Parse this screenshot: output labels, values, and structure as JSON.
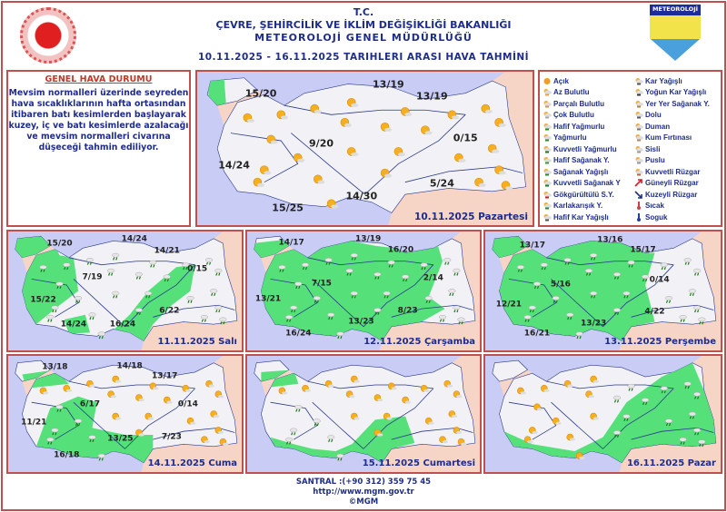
{
  "header": {
    "line1": "T.C.",
    "line2": "ÇEVRE, ŞEHİRCİLİK VE İKLİM DEĞİŞİKLİĞİ BAKANLIĞI",
    "line3": "METEOROLOJİ  GENEL  MÜDÜRLÜĞÜ",
    "line4": "10.11.2025  -  16.11.2025   TARIHLERI  ARASI  HAVA  TAHMİNİ",
    "logo_text": "METEOROLOJİ"
  },
  "summary": {
    "title": "GENEL HAVA DURUMU",
    "text": "Mevsim normalleri üzerinde seyreden hava sıcaklıklarının hafta ortasından itibaren batı kesimlerden başlayarak kuzey, iç ve batı kesimlerde azalacağı ve mevsim normalleri civarına düşeceği tahmin ediliyor."
  },
  "colors": {
    "accent": "#c0504d",
    "text": "#1f2d8a",
    "rain_area": "#55e07a",
    "sea": "#c9cdf5",
    "land": "#f2f2f6",
    "neighbor": "#f6d5c6"
  },
  "legend": [
    {
      "label": "Açık",
      "icon": "sun-icon"
    },
    {
      "label": "Az Bulutlu",
      "icon": "mostly-sunny-icon"
    },
    {
      "label": "Parçalı Bulutlu",
      "icon": "partly-cloudy-icon"
    },
    {
      "label": "Çok Bulutlu",
      "icon": "cloudy-icon"
    },
    {
      "label": "Hafif Yağmurlu",
      "icon": "light-rain-icon"
    },
    {
      "label": "Yağmurlu",
      "icon": "rain-icon"
    },
    {
      "label": "Kuvvetli Yağmurlu",
      "icon": "heavy-rain-icon"
    },
    {
      "label": "Hafif Sağanak Y.",
      "icon": "light-shower-icon"
    },
    {
      "label": "Sağanak Yağışlı",
      "icon": "shower-icon"
    },
    {
      "label": "Kuvvetli Sağanak Y",
      "icon": "heavy-shower-icon"
    },
    {
      "label": "Gökgürültülü S.Y.",
      "icon": "thunderstorm-icon"
    },
    {
      "label": "Karlakarışık Y.",
      "icon": "sleet-icon"
    },
    {
      "label": "Hafif Kar Yağışlı",
      "icon": "light-snow-icon"
    },
    {
      "label": "Kar Yağışlı",
      "icon": "snow-icon"
    },
    {
      "label": "Yoğun Kar Yağışlı",
      "icon": "heavy-snow-icon"
    },
    {
      "label": "Yer Yer Sağanak Y.",
      "icon": "scattered-shower-icon"
    },
    {
      "label": "Dolu",
      "icon": "hail-icon"
    },
    {
      "label": "Duman",
      "icon": "smoke-icon"
    },
    {
      "label": "Kum Fırtınası",
      "icon": "sandstorm-icon"
    },
    {
      "label": "Sisli",
      "icon": "fog-icon"
    },
    {
      "label": "Puslu",
      "icon": "haze-icon"
    },
    {
      "label": "Kuvvetli Rüzgar",
      "icon": "strong-wind-icon"
    },
    {
      "label": "Güneyli Rüzgar",
      "icon": "south-wind-arrow-icon"
    },
    {
      "label": "Kuzeyli Rüzgar",
      "icon": "north-wind-arrow-icon"
    },
    {
      "label": "Sıcak",
      "icon": "hot-thermometer-icon"
    },
    {
      "label": "Soguk",
      "icon": "cold-thermometer-icon"
    }
  ],
  "days": [
    {
      "date": "10.11.2025 Pazartesi",
      "temps": [
        "15/20",
        "13/19",
        "13/19",
        "9/20",
        "0/15",
        "14/24",
        "14/30",
        "5/24",
        "15/25"
      ]
    },
    {
      "date": "11.11.2025 Salı",
      "temps": [
        "15/20",
        "14/24",
        "14/21",
        "7/19",
        "0/15",
        "15/22",
        "14/24",
        "16/24",
        "6/22"
      ]
    },
    {
      "date": "12.11.2025 Çarşamba",
      "temps": [
        "14/17",
        "13/19",
        "16/20",
        "7/15",
        "2/14",
        "13/21",
        "16/24",
        "13/23",
        "8/23"
      ]
    },
    {
      "date": "13.11.2025 Perşembe",
      "temps": [
        "13/17",
        "13/16",
        "15/17",
        "5/16",
        "0/14",
        "12/21",
        "16/21",
        "13/23",
        "4/22"
      ]
    },
    {
      "date": "14.11.2025 Cuma",
      "temps": [
        "13/18",
        "14/18",
        "13/17",
        "6/17",
        "0/14",
        "11/21",
        "16/18",
        "13/25",
        "7/23"
      ]
    },
    {
      "date": "15.11.2025 Cumartesi"
    },
    {
      "date": "16.11.2025 Pazar"
    }
  ],
  "footer": {
    "phone": "SANTRAL :(+90 312) 359 75 45",
    "url": "http://www.mgm.gov.tr",
    "copyright": "©MGM"
  }
}
